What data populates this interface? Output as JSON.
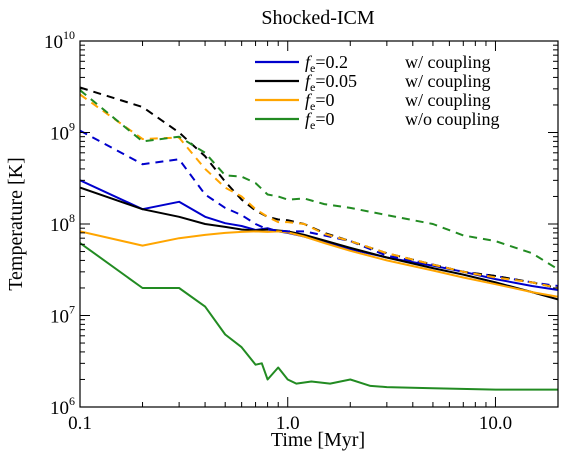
{
  "chart_data": {
    "type": "line",
    "title": "Shocked-ICM",
    "xlabel": "Time [Myr]",
    "ylabel": "Temperature [K]",
    "xscale": "log",
    "yscale": "log",
    "xlim": [
      0.1,
      20
    ],
    "ylim": [
      1000000,
      10000000000
    ],
    "x_ticks": [
      {
        "value": 0.1,
        "label": "0.1"
      },
      {
        "value": 1.0,
        "label": "1.0"
      },
      {
        "value": 10.0,
        "label": "10.0"
      }
    ],
    "y_ticks": [
      {
        "value": 1000000,
        "base": "10",
        "exp": "6"
      },
      {
        "value": 10000000,
        "base": "10",
        "exp": "7"
      },
      {
        "value": 100000000,
        "base": "10",
        "exp": "8"
      },
      {
        "value": 1000000000,
        "base": "10",
        "exp": "9"
      },
      {
        "value": 10000000000,
        "base": "10",
        "exp": "10"
      }
    ],
    "legend": {
      "placement": "top-right",
      "entries": [
        {
          "symbol": "f",
          "sub": "e",
          "value": "=0.2",
          "note": "w/ coupling",
          "color": "#0000cc"
        },
        {
          "symbol": "f",
          "sub": "e",
          "value": "=0.05",
          "note": "w/ coupling",
          "color": "#000000"
        },
        {
          "symbol": "f",
          "sub": "e",
          "value": "=0",
          "note": "w/ coupling",
          "color": "#ffa500"
        },
        {
          "symbol": "f",
          "sub": "e",
          "value": "=0",
          "note": "w/o coupling",
          "color": "#228b22"
        }
      ]
    },
    "series": [
      {
        "key": "blue-solid",
        "color": "#0000cc",
        "dash": false,
        "x": [
          0.1,
          0.2,
          0.3,
          0.4,
          0.5,
          0.6,
          0.7,
          0.8,
          0.9,
          1.0,
          1.2,
          1.5,
          2,
          3,
          5,
          7,
          10,
          15,
          20
        ],
        "y": [
          300000000.0,
          145000000.0,
          175000000.0,
          120000000.0,
          102000000.0,
          95000000.0,
          86000000.0,
          90000000.0,
          83000000.0,
          80000000.0,
          73000000.0,
          63000000.0,
          53000000.0,
          43000000.0,
          35000000.0,
          30000000.0,
          25000000.0,
          21000000.0,
          19000000.0
        ]
      },
      {
        "key": "black-solid",
        "color": "#000000",
        "dash": false,
        "x": [
          0.1,
          0.2,
          0.3,
          0.4,
          0.5,
          0.6,
          0.7,
          0.8,
          0.9,
          1.0,
          1.2,
          1.5,
          2,
          3,
          5,
          7,
          10,
          15,
          20
        ],
        "y": [
          250000000.0,
          145000000.0,
          120000000.0,
          100000000.0,
          93000000.0,
          87000000.0,
          85000000.0,
          87000000.0,
          85000000.0,
          83000000.0,
          76000000.0,
          66000000.0,
          55000000.0,
          43000000.0,
          33000000.0,
          28000000.0,
          23000000.0,
          18000000.0,
          15000000.0
        ]
      },
      {
        "key": "orange-solid",
        "color": "#ffa500",
        "dash": false,
        "x": [
          0.1,
          0.2,
          0.3,
          0.4,
          0.5,
          0.6,
          0.7,
          0.8,
          0.9,
          1.0,
          1.2,
          1.5,
          2,
          3,
          5,
          7,
          10,
          15,
          20
        ],
        "y": [
          83000000.0,
          58000000.0,
          70000000.0,
          76000000.0,
          80000000.0,
          82000000.0,
          83000000.0,
          82000000.0,
          83000000.0,
          81000000.0,
          73000000.0,
          62000000.0,
          51000000.0,
          40000000.0,
          31000000.0,
          26000000.0,
          22000000.0,
          18000000.0,
          16000000.0
        ]
      },
      {
        "key": "green-solid",
        "color": "#228b22",
        "dash": false,
        "x": [
          0.1,
          0.2,
          0.3,
          0.4,
          0.5,
          0.6,
          0.7,
          0.75,
          0.8,
          0.9,
          1.0,
          1.1,
          1.3,
          1.6,
          2.0,
          2.5,
          3.0,
          5.0,
          10.0,
          20.0
        ],
        "y": [
          62000000.0,
          20000000.0,
          20000000.0,
          12500000.0,
          6200000.0,
          4500000.0,
          2900000.0,
          3000000.0,
          2000000.0,
          2700000.0,
          2000000.0,
          1800000.0,
          1900000.0,
          1800000.0,
          2000000.0,
          1700000.0,
          1650000.0,
          1600000.0,
          1550000.0,
          1550000.0
        ]
      },
      {
        "key": "blue-dashed",
        "color": "#0000cc",
        "dash": true,
        "x": [
          0.1,
          0.2,
          0.3,
          0.4,
          0.5,
          0.6,
          0.7,
          0.8,
          0.9,
          1.0,
          1.2,
          1.5,
          2,
          3,
          5,
          7,
          10,
          15,
          20
        ],
        "y": [
          1050000000.0,
          450000000.0,
          510000000.0,
          210000000.0,
          150000000.0,
          125000000.0,
          100000000.0,
          87000000.0,
          85000000.0,
          83000000.0,
          83000000.0,
          75000000.0,
          65000000.0,
          45000000.0,
          36000000.0,
          30000000.0,
          27000000.0,
          23000000.0,
          21000000.0
        ]
      },
      {
        "key": "black-dashed",
        "color": "#000000",
        "dash": true,
        "x": [
          0.1,
          0.2,
          0.3,
          0.4,
          0.5,
          0.6,
          0.7,
          0.8,
          0.9,
          1.0,
          1.2,
          1.5,
          2,
          3,
          5,
          7,
          10,
          15,
          20
        ],
        "y": [
          3100000000.0,
          1900000000.0,
          1000000000.0,
          550000000.0,
          290000000.0,
          185000000.0,
          140000000.0,
          120000000.0,
          112000000.0,
          110000000.0,
          100000000.0,
          80000000.0,
          65000000.0,
          48000000.0,
          36000000.0,
          30000000.0,
          27000000.0,
          23000000.0,
          20000000.0
        ]
      },
      {
        "key": "orange-dashed",
        "color": "#ffa500",
        "dash": true,
        "x": [
          0.1,
          0.2,
          0.3,
          0.4,
          0.5,
          0.6,
          0.7,
          0.8,
          0.9,
          1.0,
          1.2,
          1.5,
          2,
          3,
          5,
          7,
          10,
          15,
          20
        ],
        "y": [
          2600000000.0,
          850000000.0,
          880000000.0,
          400000000.0,
          250000000.0,
          200000000.0,
          145000000.0,
          120000000.0,
          105000000.0,
          105000000.0,
          100000000.0,
          78000000.0,
          65000000.0,
          48000000.0,
          36000000.0,
          30000000.0,
          26000000.0,
          23000000.0,
          20000000.0
        ]
      },
      {
        "key": "green-dashed",
        "color": "#228b22",
        "dash": true,
        "x": [
          0.1,
          0.2,
          0.3,
          0.4,
          0.5,
          0.6,
          0.7,
          0.8,
          0.9,
          1.0,
          1.2,
          1.5,
          2,
          3,
          5,
          7,
          10,
          15,
          20
        ],
        "y": [
          2900000000.0,
          800000000.0,
          900000000.0,
          600000000.0,
          340000000.0,
          330000000.0,
          280000000.0,
          210000000.0,
          200000000.0,
          185000000.0,
          190000000.0,
          165000000.0,
          150000000.0,
          125000000.0,
          100000000.0,
          75000000.0,
          65000000.0,
          48000000.0,
          32000000.0
        ]
      }
    ]
  }
}
